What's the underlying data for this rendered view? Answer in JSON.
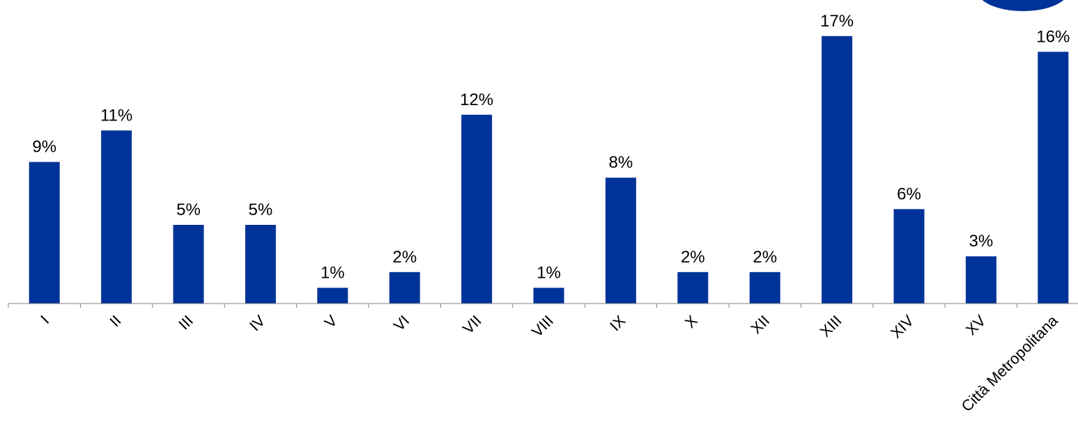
{
  "colors": {
    "bar": "#003399",
    "axis": "#808080",
    "label": "#000000",
    "corner_badge": "#003399"
  },
  "chart_data": {
    "type": "bar",
    "title": "",
    "xlabel": "",
    "ylabel": "",
    "categories": [
      "I",
      "II",
      "III",
      "IV",
      "V",
      "VI",
      "VII",
      "VIII",
      "IX",
      "X",
      "XII",
      "XIII",
      "XIV",
      "XV",
      "Città Metropolitana"
    ],
    "values": [
      9,
      11,
      5,
      5,
      1,
      2,
      12,
      1,
      8,
      2,
      2,
      17,
      6,
      3,
      16
    ],
    "value_labels": [
      "9%",
      "11%",
      "5%",
      "5%",
      "1%",
      "2%",
      "12%",
      "1%",
      "8%",
      "2%",
      "2%",
      "17%",
      "6%",
      "3%",
      "16%"
    ],
    "unit": "%",
    "ylim": [
      0,
      17
    ],
    "grid": false,
    "legend": "none"
  }
}
